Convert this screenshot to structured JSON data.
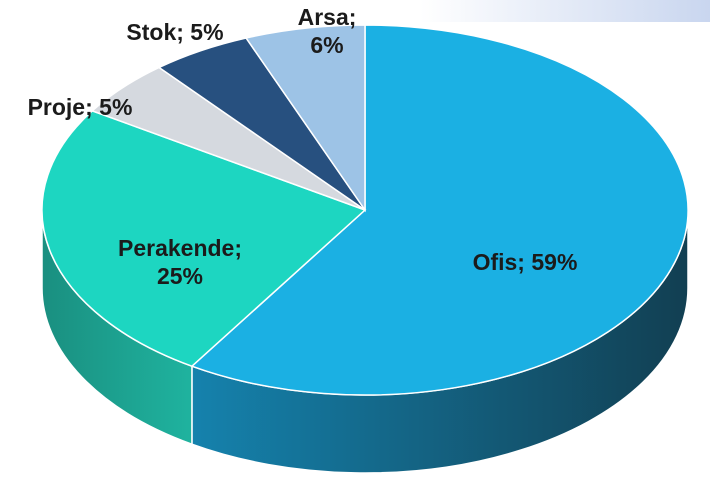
{
  "chart_data": {
    "type": "pie",
    "values": [
      59,
      25,
      5,
      5,
      6
    ],
    "value_labels": [
      "Ofis; 59%",
      "Perakende; 25%",
      "Proje; 5%",
      "Stok; 5%",
      "Arsa; 6%"
    ],
    "colors": [
      "#1bb0e3",
      "#1dd6c1",
      "#d5d9df",
      "#27507f",
      "#9dc3e6"
    ]
  }
}
